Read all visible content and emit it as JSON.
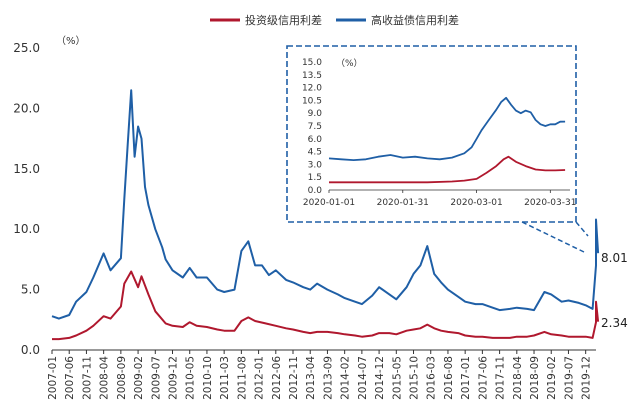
{
  "chart_data": [
    {
      "type": "line",
      "unit_label": "（%）",
      "ylim": [
        0,
        25
      ],
      "yticks": [
        "0.0",
        "5.0",
        "10.0",
        "15.0",
        "20.0",
        "25.0"
      ],
      "xlim": [
        "2007-01",
        "2020-03"
      ],
      "xticks": [
        "2007-01",
        "2007-06",
        "2007-11",
        "2008-04",
        "2008-09",
        "2009-02",
        "2009-07",
        "2009-12",
        "2010-05",
        "2010-10",
        "2011-03",
        "2011-08",
        "2012-01",
        "2012-06",
        "2012-11",
        "2013-04",
        "2013-09",
        "2014-02",
        "2014-07",
        "2014-12",
        "2015-05",
        "2015-10",
        "2016-03",
        "2016-08",
        "2017-01",
        "2017-06",
        "2017-11",
        "2018-04",
        "2018-09",
        "2019-02",
        "2019-07",
        "2019-12"
      ],
      "legend_position": "top",
      "grid": false,
      "series": [
        {
          "name": "投资级信用利差",
          "color": "#b0182e",
          "end_label": "2.34",
          "x": [
            "2007-01",
            "2007-03",
            "2007-06",
            "2007-08",
            "2007-11",
            "2008-01",
            "2008-04",
            "2008-06",
            "2008-09",
            "2008-10",
            "2008-12",
            "2009-02",
            "2009-03",
            "2009-05",
            "2009-07",
            "2009-10",
            "2009-12",
            "2010-03",
            "2010-05",
            "2010-07",
            "2010-10",
            "2011-01",
            "2011-03",
            "2011-06",
            "2011-08",
            "2011-10",
            "2011-12",
            "2012-03",
            "2012-06",
            "2012-09",
            "2012-11",
            "2013-02",
            "2013-04",
            "2013-06",
            "2013-09",
            "2013-12",
            "2014-02",
            "2014-05",
            "2014-07",
            "2014-10",
            "2014-12",
            "2015-03",
            "2015-05",
            "2015-08",
            "2015-10",
            "2015-12",
            "2016-02",
            "2016-04",
            "2016-06",
            "2016-08",
            "2016-11",
            "2017-01",
            "2017-04",
            "2017-06",
            "2017-09",
            "2017-11",
            "2018-02",
            "2018-04",
            "2018-07",
            "2018-09",
            "2018-12",
            "2019-02",
            "2019-05",
            "2019-07",
            "2019-10",
            "2019-12",
            "2020-02",
            "2020-03",
            "2020-03",
            "2020-03"
          ],
          "values": [
            0.9,
            0.9,
            1.0,
            1.2,
            1.6,
            2.0,
            2.8,
            2.6,
            3.6,
            5.5,
            6.5,
            5.2,
            6.1,
            4.6,
            3.2,
            2.2,
            2.0,
            1.9,
            2.3,
            2.0,
            1.9,
            1.7,
            1.6,
            1.6,
            2.4,
            2.7,
            2.4,
            2.2,
            2.0,
            1.8,
            1.7,
            1.5,
            1.4,
            1.5,
            1.5,
            1.4,
            1.3,
            1.2,
            1.1,
            1.2,
            1.4,
            1.4,
            1.3,
            1.6,
            1.7,
            1.8,
            2.1,
            1.8,
            1.6,
            1.5,
            1.4,
            1.2,
            1.1,
            1.1,
            1.0,
            1.0,
            1.0,
            1.1,
            1.1,
            1.2,
            1.5,
            1.3,
            1.2,
            1.1,
            1.1,
            1.1,
            1.0,
            2.3,
            4.0,
            2.34
          ]
        },
        {
          "name": "高收益债信用利差",
          "color": "#1f5fa6",
          "end_label": "8.01",
          "x": [
            "2007-01",
            "2007-03",
            "2007-06",
            "2007-08",
            "2007-11",
            "2008-01",
            "2008-04",
            "2008-06",
            "2008-09",
            "2008-10",
            "2008-11",
            "2008-12",
            "2009-01",
            "2009-02",
            "2009-03",
            "2009-04",
            "2009-05",
            "2009-07",
            "2009-09",
            "2009-10",
            "2009-12",
            "2010-03",
            "2010-05",
            "2010-07",
            "2010-10",
            "2011-01",
            "2011-03",
            "2011-06",
            "2011-08",
            "2011-10",
            "2011-12",
            "2012-02",
            "2012-04",
            "2012-06",
            "2012-09",
            "2012-11",
            "2013-02",
            "2013-04",
            "2013-06",
            "2013-09",
            "2013-12",
            "2014-02",
            "2014-05",
            "2014-07",
            "2014-10",
            "2014-12",
            "2015-03",
            "2015-05",
            "2015-08",
            "2015-10",
            "2015-12",
            "2016-02",
            "2016-04",
            "2016-06",
            "2016-08",
            "2016-11",
            "2017-01",
            "2017-04",
            "2017-06",
            "2017-09",
            "2017-11",
            "2018-02",
            "2018-04",
            "2018-07",
            "2018-09",
            "2018-12",
            "2019-02",
            "2019-05",
            "2019-07",
            "2019-10",
            "2019-12",
            "2020-02",
            "2020-03",
            "2020-03",
            "2020-03"
          ],
          "values": [
            2.8,
            2.6,
            2.9,
            4.0,
            4.8,
            6.0,
            8.0,
            6.6,
            7.6,
            12.5,
            17.0,
            21.5,
            16.0,
            18.5,
            17.5,
            13.5,
            12.0,
            10.0,
            8.5,
            7.5,
            6.6,
            6.0,
            6.8,
            6.0,
            6.0,
            5.0,
            4.8,
            5.0,
            8.2,
            9.0,
            7.0,
            7.0,
            6.2,
            6.6,
            5.8,
            5.6,
            5.2,
            5.0,
            5.5,
            5.0,
            4.6,
            4.3,
            4.0,
            3.8,
            4.5,
            5.2,
            4.6,
            4.2,
            5.2,
            6.3,
            7.0,
            8.6,
            6.3,
            5.6,
            5.0,
            4.4,
            4.0,
            3.8,
            3.8,
            3.5,
            3.3,
            3.4,
            3.5,
            3.4,
            3.3,
            4.8,
            4.6,
            4.0,
            4.1,
            3.9,
            3.7,
            3.4,
            7.0,
            10.8,
            8.01
          ]
        }
      ]
    },
    {
      "type": "line",
      "unit_label": "（%）",
      "ylim": [
        0,
        15
      ],
      "yticks": [
        "0.0",
        "1.5",
        "3.0",
        "4.5",
        "6.0",
        "7.5",
        "9.0",
        "10.5",
        "12.0",
        "13.5",
        "15.0"
      ],
      "xticks": [
        "2020-01-01",
        "2020-01-31",
        "2020-03-01",
        "2020-03-31"
      ],
      "xlim_days": [
        0,
        98
      ],
      "xtick_days": [
        0,
        30,
        60,
        90
      ],
      "grid": false,
      "series": [
        {
          "name": "投资级信用利差",
          "color": "#b0182e",
          "x_days": [
            0,
            10,
            20,
            30,
            40,
            50,
            55,
            60,
            64,
            68,
            71,
            73,
            76,
            80,
            84,
            88,
            92,
            96
          ],
          "values": [
            0.9,
            0.9,
            0.9,
            0.9,
            0.9,
            1.0,
            1.1,
            1.3,
            2.0,
            2.8,
            3.6,
            3.9,
            3.3,
            2.8,
            2.4,
            2.3,
            2.3,
            2.34
          ]
        },
        {
          "name": "高收益债信用利差",
          "color": "#1f5fa6",
          "x_days": [
            0,
            5,
            10,
            15,
            20,
            25,
            30,
            35,
            40,
            45,
            50,
            55,
            58,
            60,
            62,
            65,
            68,
            70,
            72,
            74,
            76,
            78,
            80,
            82,
            84,
            86,
            88,
            90,
            92,
            94,
            96
          ],
          "values": [
            3.7,
            3.6,
            3.5,
            3.6,
            3.9,
            4.1,
            3.8,
            3.9,
            3.7,
            3.6,
            3.8,
            4.3,
            5.0,
            6.0,
            7.0,
            8.2,
            9.4,
            10.3,
            10.8,
            10.0,
            9.3,
            9.0,
            9.3,
            9.1,
            8.2,
            7.7,
            7.5,
            7.7,
            7.7,
            8.0,
            8.01
          ]
        }
      ]
    }
  ]
}
